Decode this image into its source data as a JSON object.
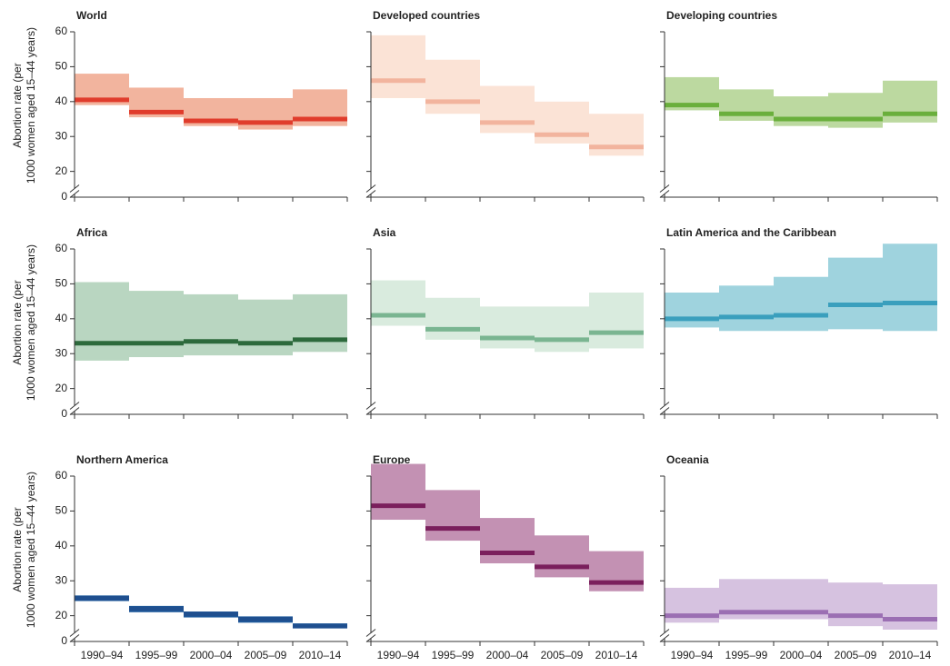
{
  "chart_data": [
    {
      "type": "step_range",
      "title": "World",
      "values": [
        40.5,
        37,
        34.5,
        34,
        35
      ],
      "lower": [
        39,
        35.5,
        33,
        32,
        33
      ],
      "upper": [
        48,
        44,
        41,
        41,
        43.5
      ],
      "color": "#e03c2c",
      "band_color": "#f2b49e",
      "ylim": [
        0,
        60
      ],
      "axis_break": [
        0,
        16
      ],
      "yticks": [
        0,
        20,
        30,
        40,
        50,
        60
      ],
      "ytick_labels": true,
      "ylabel": [
        "Abortion rate (per",
        "1000 women aged 15–44 years)"
      ]
    },
    {
      "type": "step_range",
      "title": "Developed countries",
      "values": [
        46,
        40,
        34,
        30.5,
        27
      ],
      "lower": [
        41,
        36.5,
        31,
        28,
        24.5
      ],
      "upper": [
        59,
        52,
        44.5,
        40,
        36.5
      ],
      "color": "#f2b49e",
      "band_color": "#fbe3d6",
      "ylim": [
        0,
        60
      ],
      "axis_break": [
        0,
        16
      ],
      "yticks": [
        0,
        20,
        30,
        40,
        50,
        60
      ],
      "ytick_labels": false
    },
    {
      "type": "step_range",
      "title": "Developing countries",
      "values": [
        39,
        36.5,
        35,
        35,
        36.5
      ],
      "lower": [
        37.5,
        34.5,
        33,
        32.5,
        34
      ],
      "upper": [
        47,
        43.5,
        41.5,
        42.5,
        46
      ],
      "color": "#6aaf3c",
      "band_color": "#bcd9a0",
      "ylim": [
        0,
        60
      ],
      "axis_break": [
        0,
        16
      ],
      "yticks": [
        0,
        20,
        30,
        40,
        50,
        60
      ],
      "ytick_labels": false
    },
    {
      "type": "step_range",
      "title": "Africa",
      "values": [
        33,
        33,
        33.5,
        33,
        34
      ],
      "lower": [
        28,
        29,
        29.5,
        29.5,
        30.5
      ],
      "upper": [
        50.5,
        48,
        47,
        45.5,
        47
      ],
      "color": "#2d6a3c",
      "band_color": "#b9d6c1",
      "ylim": [
        0,
        60
      ],
      "axis_break": [
        0,
        16
      ],
      "yticks": [
        0,
        20,
        30,
        40,
        50,
        60
      ],
      "ytick_labels": true,
      "ylabel": [
        "Abortion rate (per",
        "1000 women aged 15–44 years)"
      ]
    },
    {
      "type": "step_range",
      "title": "Asia",
      "values": [
        41,
        37,
        34.5,
        34,
        36
      ],
      "lower": [
        38,
        34,
        31.5,
        30.5,
        31.5
      ],
      "upper": [
        51,
        46,
        43.5,
        43.5,
        47.5
      ],
      "color": "#7ab591",
      "band_color": "#d9ebde",
      "ylim": [
        0,
        60
      ],
      "axis_break": [
        0,
        16
      ],
      "yticks": [
        0,
        20,
        30,
        40,
        50,
        60
      ],
      "ytick_labels": false
    },
    {
      "type": "step_range",
      "title": "Latin America and the Caribbean",
      "values": [
        40,
        40.5,
        41,
        44,
        44.5
      ],
      "lower": [
        37.5,
        36.5,
        36.5,
        37,
        36.5
      ],
      "upper": [
        47.5,
        49.5,
        52,
        57.5,
        61.5
      ],
      "color": "#3a9fbd",
      "band_color": "#9fd3de",
      "ylim": [
        0,
        60
      ],
      "axis_break": [
        0,
        16
      ],
      "yticks": [
        0,
        20,
        30,
        40,
        50,
        60
      ],
      "ytick_labels": false
    },
    {
      "type": "step_range",
      "title": "Northern America",
      "categories": [
        "1990–94",
        "1995–99",
        "2000–04",
        "2005–09",
        "2010–14"
      ],
      "values": [
        25,
        22,
        20.5,
        19,
        17
      ],
      "lower": [
        24.2,
        21,
        19.5,
        18,
        16.5
      ],
      "upper": [
        25.8,
        22.8,
        21.2,
        19.8,
        17.8
      ],
      "color": "#1f4f8f",
      "band_color": "#1f5c9e",
      "ylim": [
        0,
        60
      ],
      "axis_break": [
        0,
        16
      ],
      "yticks": [
        0,
        20,
        30,
        40,
        50,
        60
      ],
      "ytick_labels": true,
      "ylabel": [
        "Abortion rate (per",
        "1000 women aged 15–44 years)"
      ]
    },
    {
      "type": "step_range",
      "title": "Europe",
      "categories": [
        "1990–94",
        "1995–99",
        "2000–04",
        "2005–09",
        "2010–14"
      ],
      "values": [
        51.5,
        45,
        38,
        34,
        29.5
      ],
      "lower": [
        47.5,
        41.5,
        35,
        31,
        27
      ],
      "upper": [
        63.5,
        56,
        48,
        43,
        38.5
      ],
      "color": "#7a1f5c",
      "band_color": "#c391b3",
      "ylim": [
        0,
        60
      ],
      "axis_break": [
        0,
        16
      ],
      "yticks": [
        0,
        20,
        30,
        40,
        50,
        60
      ],
      "ytick_labels": false
    },
    {
      "type": "step_range",
      "title": "Oceania",
      "categories": [
        "1990–94",
        "1995–99",
        "2000–04",
        "2005–09",
        "2010–14"
      ],
      "values": [
        20,
        21,
        21,
        20,
        19
      ],
      "lower": [
        18,
        19,
        19,
        17,
        16
      ],
      "upper": [
        28,
        30.5,
        30.5,
        29.5,
        29
      ],
      "color": "#9b6fb3",
      "band_color": "#d6c2e0",
      "ylim": [
        0,
        60
      ],
      "axis_break": [
        0,
        16
      ],
      "yticks": [
        0,
        20,
        30,
        40,
        50,
        60
      ],
      "ytick_labels": false
    }
  ]
}
